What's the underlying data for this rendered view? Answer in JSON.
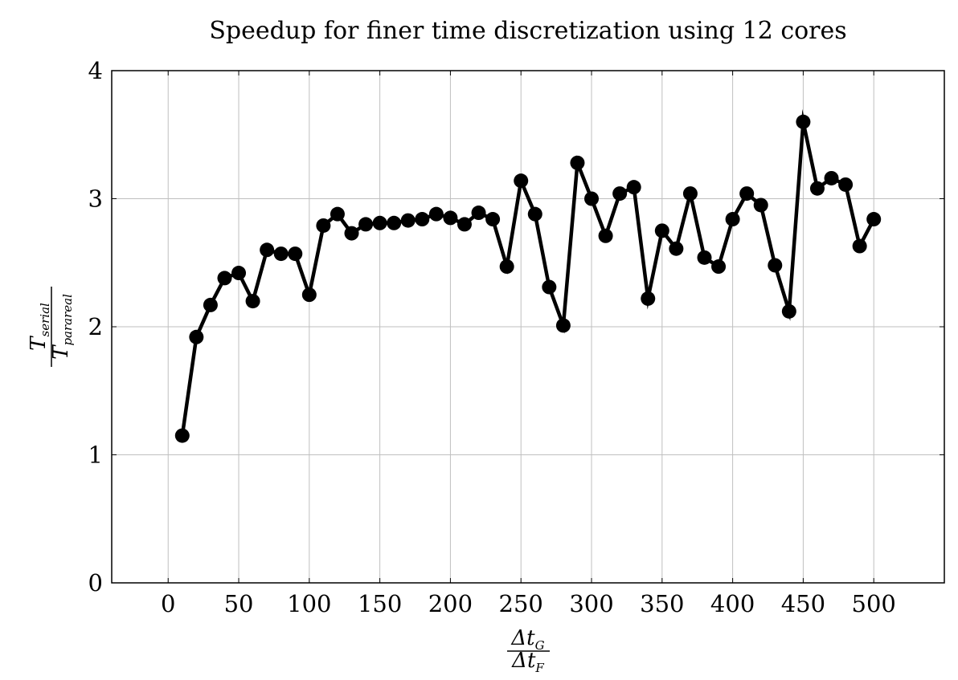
{
  "chart_data": {
    "type": "line",
    "title": "Speedup for finer time discretization using 12 cores",
    "xlabel": {
      "numerator": "Δt",
      "numerator_sub": "G",
      "denominator": "Δt",
      "denominator_sub": "F"
    },
    "ylabel": {
      "numerator": "T",
      "numerator_sub": "serial",
      "denominator": "T",
      "denominator_sub": "parareal"
    },
    "xlim": [
      -40,
      550
    ],
    "ylim": [
      0,
      4
    ],
    "xticks": [
      "0",
      "50",
      "100",
      "150",
      "200",
      "250",
      "300",
      "350",
      "400",
      "450",
      "500"
    ],
    "yticks": [
      "0",
      "1",
      "2",
      "3",
      "4"
    ],
    "grid": true,
    "series": [
      {
        "color": "#000000",
        "marker": "circle",
        "x": [
          10,
          20,
          30,
          40,
          50,
          60,
          70,
          80,
          90,
          100,
          110,
          120,
          130,
          140,
          150,
          160,
          170,
          180,
          190,
          200,
          210,
          220,
          230,
          240,
          250,
          260,
          270,
          280,
          290,
          300,
          310,
          320,
          330,
          340,
          350,
          360,
          370,
          380,
          390,
          400,
          410,
          420,
          430,
          440,
          450,
          460,
          470,
          480,
          490,
          500
        ],
        "y": [
          1.15,
          1.92,
          2.17,
          2.38,
          2.42,
          2.2,
          2.6,
          2.57,
          2.57,
          2.25,
          2.79,
          2.88,
          2.73,
          2.8,
          2.81,
          2.81,
          2.83,
          2.84,
          2.88,
          2.85,
          2.8,
          2.89,
          2.84,
          2.47,
          3.14,
          2.88,
          2.31,
          2.01,
          3.28,
          3.0,
          2.71,
          3.04,
          3.09,
          2.22,
          2.75,
          2.61,
          3.04,
          2.54,
          2.47,
          2.84,
          3.04,
          2.95,
          2.48,
          2.12,
          3.6,
          3.08,
          3.16,
          3.11,
          2.63,
          2.84
        ]
      }
    ]
  }
}
